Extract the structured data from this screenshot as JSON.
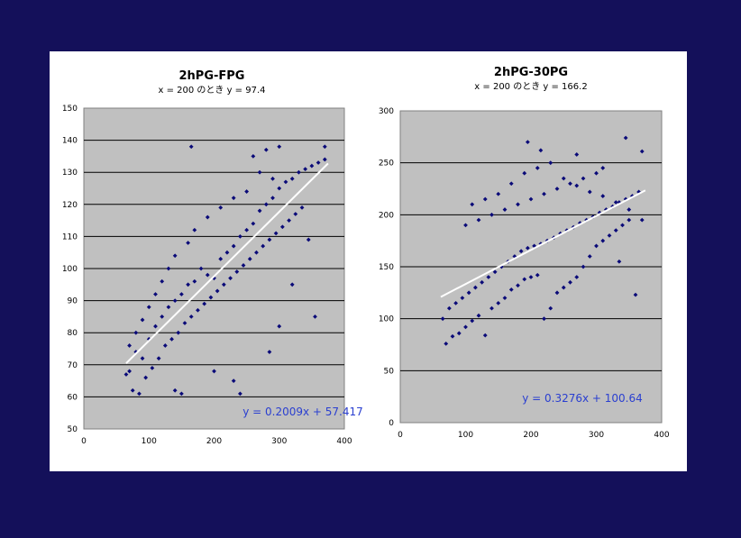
{
  "colors": {
    "background": "#14105a",
    "panel": "#ffffff",
    "plot_area": "#c0c0c0",
    "marker": "#0a0a78",
    "trendline": "#ffffff",
    "equation": "#2a3fd0"
  },
  "chart_data": [
    {
      "type": "scatter",
      "title": "2hPG-FPG",
      "subtitle": "x = 200 のとき y = 97.4",
      "equation_label": "y = 0.2009x + 57.417",
      "trendline": {
        "slope": 0.2009,
        "intercept": 57.417,
        "x_range": [
          65,
          375
        ]
      },
      "xlim": [
        0,
        400
      ],
      "ylim": [
        50,
        150
      ],
      "x_ticks": [
        "0",
        "100",
        "200",
        "300",
        "400"
      ],
      "y_ticks": [
        "50",
        "60",
        "70",
        "80",
        "90",
        "100",
        "110",
        "120",
        "130",
        "140",
        "150"
      ],
      "grid": "horizontal",
      "points": [
        [
          70,
          68
        ],
        [
          80,
          74
        ],
        [
          90,
          72
        ],
        [
          100,
          78
        ],
        [
          110,
          82
        ],
        [
          120,
          85
        ],
        [
          130,
          88
        ],
        [
          140,
          90
        ],
        [
          150,
          92
        ],
        [
          160,
          95
        ],
        [
          170,
          96
        ],
        [
          180,
          100
        ],
        [
          190,
          98
        ],
        [
          200,
          97
        ],
        [
          210,
          103
        ],
        [
          220,
          105
        ],
        [
          230,
          107
        ],
        [
          240,
          110
        ],
        [
          250,
          112
        ],
        [
          260,
          114
        ],
        [
          270,
          118
        ],
        [
          280,
          120
        ],
        [
          290,
          122
        ],
        [
          300,
          125
        ],
        [
          310,
          127
        ],
        [
          320,
          128
        ],
        [
          330,
          130
        ],
        [
          340,
          131
        ],
        [
          350,
          132
        ],
        [
          360,
          133
        ],
        [
          370,
          134
        ],
        [
          165,
          138
        ],
        [
          240,
          61
        ],
        [
          370,
          138
        ],
        [
          345,
          109
        ],
        [
          355,
          85
        ],
        [
          65,
          67
        ],
        [
          75,
          62
        ],
        [
          85,
          61
        ],
        [
          95,
          66
        ],
        [
          105,
          69
        ],
        [
          115,
          72
        ],
        [
          125,
          76
        ],
        [
          135,
          78
        ],
        [
          145,
          80
        ],
        [
          155,
          83
        ],
        [
          165,
          85
        ],
        [
          175,
          87
        ],
        [
          185,
          89
        ],
        [
          195,
          91
        ],
        [
          205,
          93
        ],
        [
          215,
          95
        ],
        [
          225,
          97
        ],
        [
          235,
          99
        ],
        [
          245,
          101
        ],
        [
          255,
          103
        ],
        [
          265,
          105
        ],
        [
          275,
          107
        ],
        [
          285,
          109
        ],
        [
          295,
          111
        ],
        [
          305,
          113
        ],
        [
          315,
          115
        ],
        [
          325,
          117
        ],
        [
          335,
          119
        ],
        [
          285,
          74
        ],
        [
          200,
          68
        ],
        [
          230,
          65
        ],
        [
          150,
          61
        ],
        [
          140,
          62
        ],
        [
          300,
          82
        ],
        [
          320,
          95
        ],
        [
          260,
          135
        ],
        [
          280,
          137
        ],
        [
          300,
          138
        ],
        [
          270,
          130
        ],
        [
          290,
          128
        ],
        [
          250,
          124
        ],
        [
          230,
          122
        ],
        [
          210,
          119
        ],
        [
          190,
          116
        ],
        [
          170,
          112
        ],
        [
          160,
          108
        ],
        [
          140,
          104
        ],
        [
          130,
          100
        ],
        [
          120,
          96
        ],
        [
          110,
          92
        ],
        [
          100,
          88
        ],
        [
          90,
          84
        ],
        [
          80,
          80
        ],
        [
          70,
          76
        ]
      ]
    },
    {
      "type": "scatter",
      "title": "2hPG-30PG",
      "subtitle": "x = 200 のとき y = 166.2",
      "equation_label": "y = 0.3276x + 100.64",
      "trendline": {
        "slope": 0.3276,
        "intercept": 100.64,
        "x_range": [
          62,
          375
        ]
      },
      "xlim": [
        0,
        400
      ],
      "ylim": [
        0,
        300
      ],
      "x_ticks": [
        "0",
        "100",
        "200",
        "300",
        "400"
      ],
      "y_ticks": [
        "0",
        "50",
        "100",
        "150",
        "200",
        "250",
        "300"
      ],
      "grid": "horizontal",
      "points": [
        [
          65,
          100
        ],
        [
          75,
          110
        ],
        [
          85,
          115
        ],
        [
          95,
          120
        ],
        [
          105,
          125
        ],
        [
          115,
          130
        ],
        [
          125,
          135
        ],
        [
          135,
          140
        ],
        [
          145,
          145
        ],
        [
          155,
          150
        ],
        [
          165,
          155
        ],
        [
          175,
          160
        ],
        [
          185,
          165
        ],
        [
          195,
          168
        ],
        [
          205,
          170
        ],
        [
          215,
          172
        ],
        [
          225,
          175
        ],
        [
          235,
          178
        ],
        [
          245,
          182
        ],
        [
          255,
          185
        ],
        [
          265,
          188
        ],
        [
          275,
          192
        ],
        [
          285,
          195
        ],
        [
          295,
          198
        ],
        [
          305,
          202
        ],
        [
          315,
          205
        ],
        [
          325,
          208
        ],
        [
          335,
          212
        ],
        [
          345,
          215
        ],
        [
          355,
          218
        ],
        [
          365,
          222
        ],
        [
          195,
          270
        ],
        [
          215,
          262
        ],
        [
          270,
          258
        ],
        [
          345,
          274
        ],
        [
          370,
          261
        ],
        [
          360,
          123
        ],
        [
          335,
          155
        ],
        [
          70,
          76
        ],
        [
          80,
          83
        ],
        [
          90,
          86
        ],
        [
          100,
          92
        ],
        [
          110,
          98
        ],
        [
          120,
          103
        ],
        [
          130,
          84
        ],
        [
          140,
          110
        ],
        [
          150,
          115
        ],
        [
          160,
          120
        ],
        [
          170,
          128
        ],
        [
          180,
          132
        ],
        [
          190,
          138
        ],
        [
          200,
          140
        ],
        [
          210,
          142
        ],
        [
          220,
          100
        ],
        [
          230,
          110
        ],
        [
          240,
          125
        ],
        [
          250,
          130
        ],
        [
          260,
          135
        ],
        [
          270,
          140
        ],
        [
          280,
          150
        ],
        [
          290,
          160
        ],
        [
          300,
          170
        ],
        [
          310,
          175
        ],
        [
          320,
          180
        ],
        [
          330,
          185
        ],
        [
          340,
          190
        ],
        [
          350,
          195
        ],
        [
          300,
          240
        ],
        [
          310,
          245
        ],
        [
          280,
          235
        ],
        [
          260,
          230
        ],
        [
          240,
          225
        ],
        [
          220,
          220
        ],
        [
          200,
          215
        ],
        [
          180,
          210
        ],
        [
          160,
          205
        ],
        [
          140,
          200
        ],
        [
          120,
          195
        ],
        [
          100,
          190
        ],
        [
          110,
          210
        ],
        [
          130,
          215
        ],
        [
          150,
          220
        ],
        [
          170,
          230
        ],
        [
          190,
          240
        ],
        [
          210,
          245
        ],
        [
          230,
          250
        ],
        [
          250,
          235
        ],
        [
          270,
          228
        ],
        [
          290,
          222
        ],
        [
          310,
          218
        ],
        [
          330,
          212
        ],
        [
          350,
          205
        ],
        [
          370,
          195
        ]
      ]
    }
  ]
}
